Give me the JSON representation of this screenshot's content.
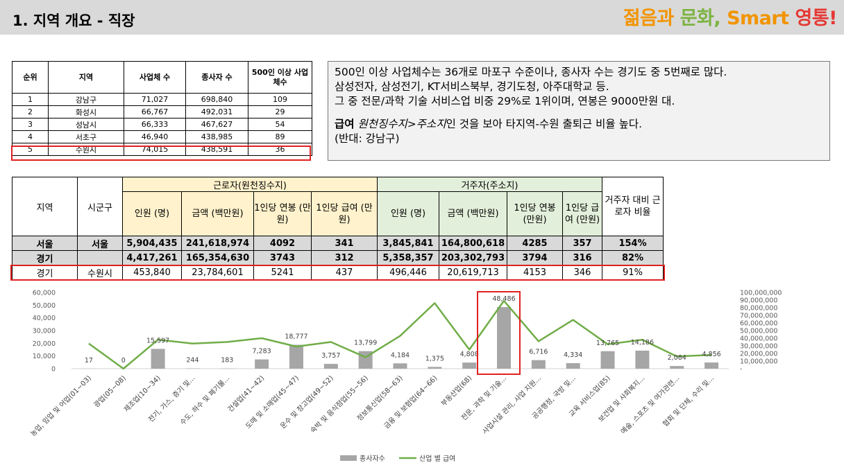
{
  "header": {
    "title": "1. 지역 개요 - 직장",
    "logo": "젊음과 문화, Smart 영통!"
  },
  "rank_table": {
    "headers": [
      "순위",
      "지역",
      "사업체 수",
      "종사자 수",
      "500인 이상 사업체수"
    ],
    "rows": [
      [
        "1",
        "강남구",
        "71,027",
        "698,840",
        "109"
      ],
      [
        "2",
        "화성시",
        "66,767",
        "492,031",
        "29"
      ],
      [
        "3",
        "성남시",
        "66,333",
        "467,627",
        "54"
      ],
      [
        "4",
        "서초구",
        "46,940",
        "438,985",
        "89"
      ],
      [
        "5",
        "수원시",
        "74,015",
        "438,591",
        "36"
      ]
    ]
  },
  "info": {
    "line1": "500인 이상 사업체수는 36개로 마포구 수준이나, 종사자 수는 경기도 중 5번째로 많다.",
    "line2": "삼성전자, 삼성전기, KT서비스북부, 경기도청, 아주대학교 등.",
    "line3": "그 중 전문/과학 기술 서비스업 비중 29%로 1위이며, 연봉은 9000만원 대.",
    "line4_bold": "급여",
    "line4_italic1": "원천징수지",
    "line4_mid": ">",
    "line4_italic2": "주소지",
    "line4_rest": "인 것을 보아 타지역-수원 출퇴근 비율 높다.",
    "line5": "(반대: 강남구)"
  },
  "wage_table": {
    "h_region": "지역",
    "h_city": "시군구",
    "group_worker": "근로자(원천징수지)",
    "group_resident": "거주자(주소지)",
    "h_ratio": "거주자 대비 근로자 비율",
    "sub_headers": [
      "인원 (명)",
      "금액 (백만원)",
      "1인당 연봉 (만원)",
      "1인당 급여 (만원)",
      "인원 (명)",
      "금액 (백만원)",
      "1인당 연봉 (만원)",
      "1인당 급여 (만원)"
    ],
    "rows": [
      [
        "서울",
        "서울",
        "5,904,435",
        "241,618,974",
        "4092",
        "341",
        "3,845,841",
        "164,800,618",
        "4285",
        "357",
        "154%"
      ],
      [
        "경기",
        "",
        "4,417,261",
        "165,354,630",
        "3743",
        "312",
        "5,358,357",
        "203,302,793",
        "3794",
        "316",
        "82%"
      ],
      [
        "경기",
        "수원시",
        "453,840",
        "23,784,601",
        "5241",
        "437",
        "496,446",
        "20,619,713",
        "4153",
        "346",
        "91%"
      ]
    ]
  },
  "chart_data": {
    "type": "bar",
    "categories": [
      "농업, 임업 및 어업(01~03)",
      "광업(05~08)",
      "제조업(10~34)",
      "전기, 가스, 증기 및...",
      "수도, 하수 및 폐기물...",
      "건설업(41~42)",
      "도매 및 소매업(45~47)",
      "운수 및 창고업(49~52)",
      "숙박 및 음식점업(55~56)",
      "정보통신업(58~63)",
      "금융 및 보험업(64~66)",
      "부동산업(68)",
      "전문, 과학 및 기술...",
      "사업시설 관리, 사업 지원...",
      "공공행정, 국방 및...",
      "교육 서비스업(85)",
      "보건업 및 사회복지...",
      "예술, 스포츠 및 여가관련...",
      "협회 및 단체, 수리 및..."
    ],
    "series": [
      {
        "name": "종사자수",
        "type": "bar",
        "axis": "left",
        "color": "#a6a6a6",
        "values": [
          17,
          0,
          15597,
          244,
          183,
          7283,
          18777,
          3757,
          13799,
          4184,
          1375,
          4808,
          48486,
          6716,
          4334,
          13765,
          14186,
          2084,
          4856
        ],
        "labels": [
          "17",
          "0",
          "15,597",
          "244",
          "183",
          "7,283",
          "18,777",
          "3,757",
          "13,799",
          "4,184",
          "1,375",
          "4,808",
          "48,486",
          "6,716",
          "4,334",
          "13,765",
          "14,186",
          "2,084",
          "4,856"
        ]
      },
      {
        "name": "산업 별 급여",
        "type": "line",
        "axis": "right",
        "color": "#70ad47",
        "values": [
          33000000,
          0,
          38000000,
          33000000,
          35000000,
          40000000,
          29000000,
          35000000,
          15000000,
          43000000,
          86000000,
          25000000,
          89000000,
          36000000,
          64000000,
          32000000,
          38000000,
          16000000,
          18000000
        ]
      }
    ],
    "y_left": {
      "min": 0,
      "max": 60000,
      "ticks": [
        "0",
        "10,000",
        "20,000",
        "30,000",
        "40,000",
        "50,000",
        "60,000"
      ]
    },
    "y_right": {
      "min": 0,
      "max": 100000000,
      "ticks": [
        "-",
        "10,000,000",
        "20,000,000",
        "30,000,000",
        "40,000,000",
        "50,000,000",
        "60,000,000",
        "70,000,000",
        "80,000,000",
        "90,000,000",
        "100,000,000"
      ]
    },
    "grid": false,
    "legend": "bottom"
  },
  "colors": {
    "highlight": "#e02020",
    "worker_header": "#fff2cc",
    "resident_header": "#e2efda",
    "header_bar": "#d9d9d9"
  }
}
